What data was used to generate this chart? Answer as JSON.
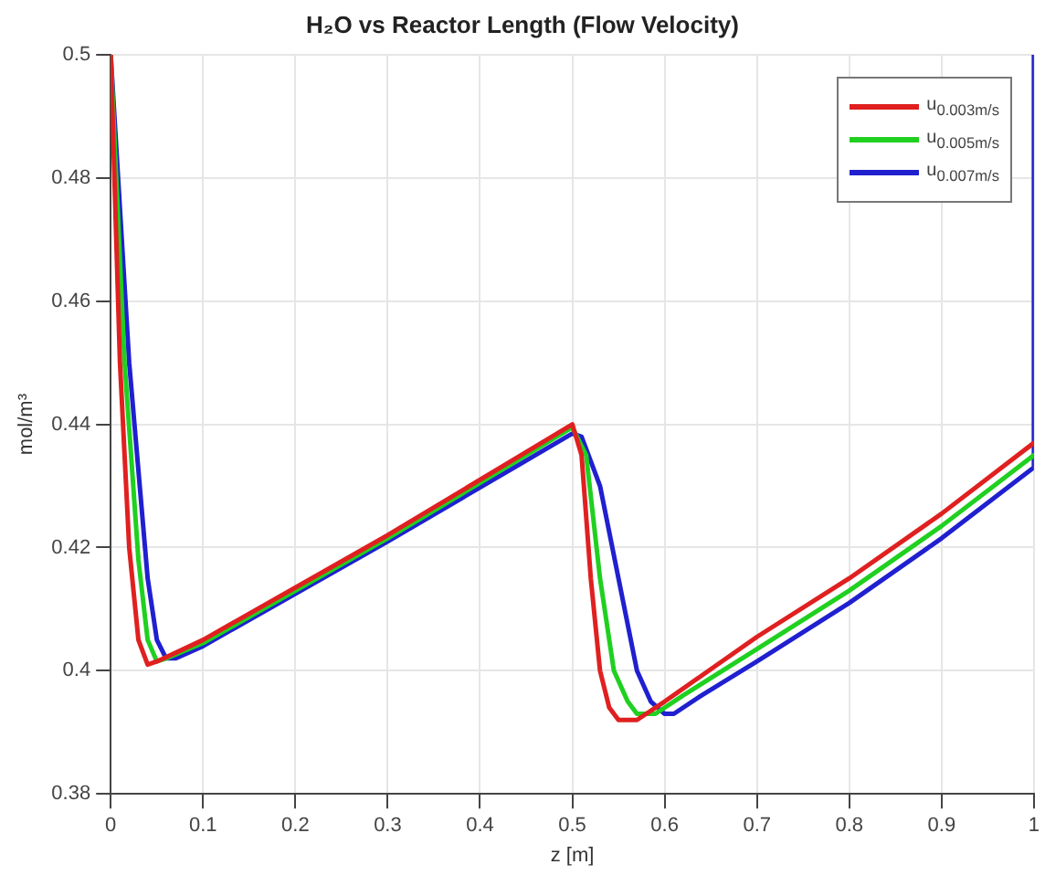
{
  "chart_data": {
    "type": "line",
    "title": "H₂O vs Reactor Length (Flow Velocity)",
    "xlabel": "z [m]",
    "ylabel": "mol/m³",
    "xlim": [
      0,
      1
    ],
    "xticks": [
      0,
      0.1,
      0.2,
      0.3,
      0.4,
      0.5,
      0.6,
      0.7,
      0.8,
      0.9,
      1
    ],
    "ylim": [
      0.38,
      0.5
    ],
    "yticks": [
      0.38,
      0.4,
      0.42,
      0.44,
      0.46,
      0.48,
      0.5
    ],
    "grid": true,
    "legend": "top right",
    "marker": "none",
    "line_style": "solid",
    "series": [
      {
        "name": "u$_{0.003m/s}$",
        "color": "#e02020",
        "x": [
          0,
          0.01,
          0.02,
          0.03,
          0.04,
          0.05,
          0.1,
          0.3,
          0.5,
          0.51,
          0.52,
          0.53,
          0.54,
          0.55,
          0.57,
          0.6,
          0.7,
          0.8,
          0.9,
          1
        ],
        "values": [
          0.5,
          0.45,
          0.42,
          0.405,
          0.401,
          0.4015,
          0.405,
          0.422,
          0.44,
          0.435,
          0.415,
          0.4,
          0.394,
          0.392,
          0.392,
          0.395,
          0.4055,
          0.415,
          0.4255,
          0.437
        ]
      },
      {
        "name": "u$_{0.005m/s}$",
        "color": "#20d020",
        "x": [
          0,
          0.015,
          0.03,
          0.04,
          0.05,
          0.06,
          0.1,
          0.3,
          0.5,
          0.515,
          0.53,
          0.545,
          0.56,
          0.57,
          0.59,
          0.62,
          0.7,
          0.8,
          0.9,
          1
        ],
        "values": [
          0.5,
          0.45,
          0.418,
          0.405,
          0.4015,
          0.402,
          0.4045,
          0.4215,
          0.4395,
          0.435,
          0.415,
          0.4,
          0.395,
          0.393,
          0.393,
          0.396,
          0.4035,
          0.413,
          0.4235,
          0.435
        ]
      },
      {
        "name": "u$_{0.007m/s}$",
        "color": "#2020d0",
        "x": [
          0,
          0.02,
          0.04,
          0.05,
          0.06,
          0.07,
          0.1,
          0.3,
          0.5,
          0.51,
          0.53,
          0.55,
          0.57,
          0.585,
          0.6,
          0.61,
          0.64,
          0.7,
          0.8,
          0.9,
          1,
          1
        ],
        "values": [
          0.5,
          0.45,
          0.415,
          0.405,
          0.402,
          0.402,
          0.404,
          0.421,
          0.4385,
          0.438,
          0.43,
          0.415,
          0.4,
          0.395,
          0.393,
          0.393,
          0.396,
          0.4015,
          0.411,
          0.4215,
          0.433,
          0.5
        ]
      }
    ]
  }
}
